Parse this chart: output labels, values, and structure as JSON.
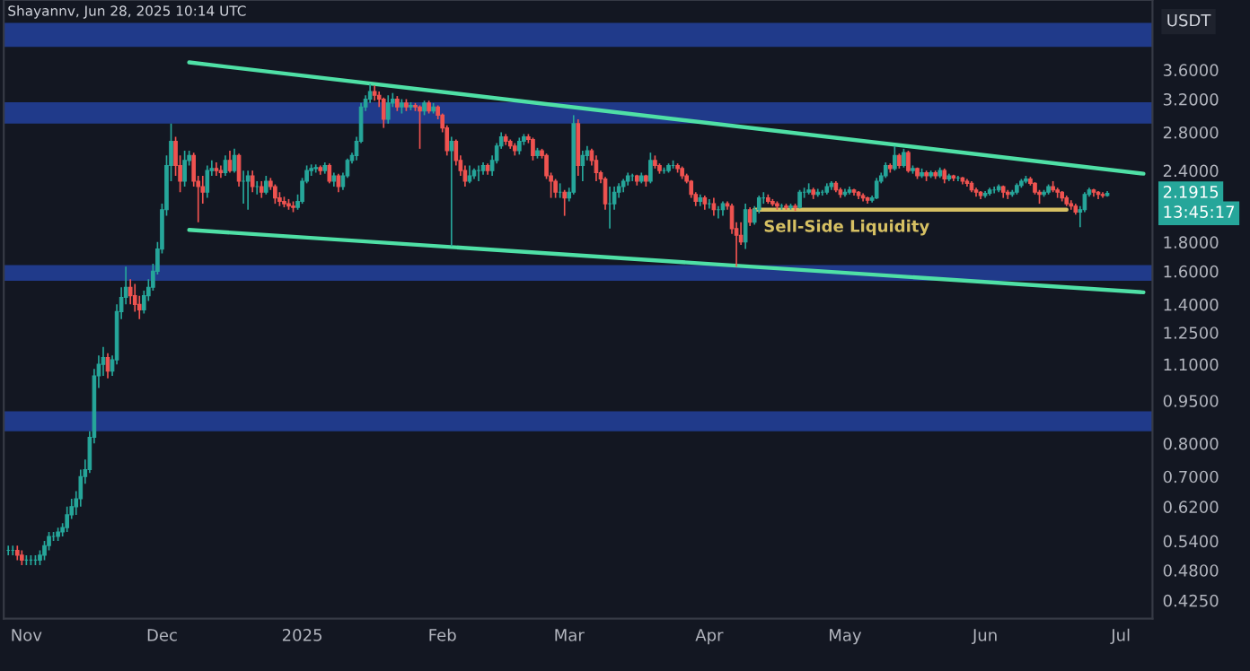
{
  "chart_data": {
    "type": "candlestick",
    "title": "Shayannv, Jun 28, 2025 10:14 UTC",
    "ylabel": "USDT",
    "x": [
      "2024-10-28",
      "2024-10-29",
      "2024-10-30",
      "2024-10-31",
      "2024-11-01",
      "2024-11-02",
      "2024-11-03",
      "2024-11-04",
      "2024-11-05",
      "2024-11-06",
      "2024-11-07",
      "2024-11-08",
      "2024-11-09",
      "2024-11-10",
      "2024-11-11",
      "2024-11-12",
      "2024-11-13",
      "2024-11-14",
      "2024-11-15",
      "2024-11-16",
      "2024-11-17",
      "2024-11-18",
      "2024-11-19",
      "2024-11-20",
      "2024-11-21",
      "2024-11-22",
      "2024-11-23",
      "2024-11-24",
      "2024-11-25",
      "2024-11-26",
      "2024-11-27",
      "2024-11-28",
      "2024-11-29",
      "2024-11-30",
      "2024-12-01",
      "2024-12-02",
      "2024-12-03",
      "2024-12-04",
      "2024-12-05",
      "2024-12-06",
      "2024-12-07",
      "2024-12-08",
      "2024-12-09",
      "2024-12-10",
      "2024-12-11",
      "2024-12-12",
      "2024-12-13",
      "2024-12-14",
      "2024-12-15",
      "2024-12-16",
      "2024-12-17",
      "2024-12-18",
      "2024-12-19",
      "2024-12-20",
      "2024-12-21",
      "2024-12-22",
      "2024-12-23",
      "2024-12-24",
      "2024-12-25",
      "2024-12-26",
      "2024-12-27",
      "2024-12-28",
      "2024-12-29",
      "2024-12-30",
      "2024-12-31",
      "2025-01-01",
      "2025-01-02",
      "2025-01-03",
      "2025-01-04",
      "2025-01-05",
      "2025-01-06",
      "2025-01-07",
      "2025-01-08",
      "2025-01-09",
      "2025-01-10",
      "2025-01-11",
      "2025-01-12",
      "2025-01-13",
      "2025-01-14",
      "2025-01-15",
      "2025-01-16",
      "2025-01-17",
      "2025-01-18",
      "2025-01-19",
      "2025-01-20",
      "2025-01-21",
      "2025-01-22",
      "2025-01-23",
      "2025-01-24",
      "2025-01-25",
      "2025-01-26",
      "2025-01-27",
      "2025-01-28",
      "2025-01-29",
      "2025-01-30",
      "2025-01-31",
      "2025-02-01",
      "2025-02-02",
      "2025-02-03",
      "2025-02-04",
      "2025-02-05",
      "2025-02-06",
      "2025-02-07",
      "2025-02-08",
      "2025-02-09",
      "2025-02-10",
      "2025-02-11",
      "2025-02-12",
      "2025-02-13",
      "2025-02-14",
      "2025-02-15",
      "2025-02-16",
      "2025-02-17",
      "2025-02-18",
      "2025-02-19",
      "2025-02-20",
      "2025-02-21",
      "2025-02-22",
      "2025-02-23",
      "2025-02-24",
      "2025-02-25",
      "2025-02-26",
      "2025-02-27",
      "2025-02-28",
      "2025-03-01",
      "2025-03-02",
      "2025-03-03",
      "2025-03-04",
      "2025-03-05",
      "2025-03-06",
      "2025-03-07",
      "2025-03-08",
      "2025-03-09",
      "2025-03-10",
      "2025-03-11",
      "2025-03-12",
      "2025-03-13",
      "2025-03-14",
      "2025-03-15",
      "2025-03-16",
      "2025-03-17",
      "2025-03-18",
      "2025-03-19",
      "2025-03-20",
      "2025-03-21",
      "2025-03-22",
      "2025-03-23",
      "2025-03-24",
      "2025-03-25",
      "2025-03-26",
      "2025-03-27",
      "2025-03-28",
      "2025-03-29",
      "2025-03-30",
      "2025-03-31",
      "2025-04-01",
      "2025-04-02",
      "2025-04-03",
      "2025-04-04",
      "2025-04-05",
      "2025-04-06",
      "2025-04-07",
      "2025-04-08",
      "2025-04-09",
      "2025-04-10",
      "2025-04-11",
      "2025-04-12",
      "2025-04-13",
      "2025-04-14",
      "2025-04-15",
      "2025-04-16",
      "2025-04-17",
      "2025-04-18",
      "2025-04-19",
      "2025-04-20",
      "2025-04-21",
      "2025-04-22",
      "2025-04-23",
      "2025-04-24",
      "2025-04-25",
      "2025-04-26",
      "2025-04-27",
      "2025-04-28",
      "2025-04-29",
      "2025-04-30",
      "2025-05-01",
      "2025-05-02",
      "2025-05-03",
      "2025-05-04",
      "2025-05-05",
      "2025-05-06",
      "2025-05-07",
      "2025-05-08",
      "2025-05-09",
      "2025-05-10",
      "2025-05-11",
      "2025-05-12",
      "2025-05-13",
      "2025-05-14",
      "2025-05-15",
      "2025-05-16",
      "2025-05-17",
      "2025-05-18",
      "2025-05-19",
      "2025-05-20",
      "2025-05-21",
      "2025-05-22",
      "2025-05-23",
      "2025-05-24",
      "2025-05-25",
      "2025-05-26",
      "2025-05-27",
      "2025-05-28",
      "2025-05-29",
      "2025-05-30",
      "2025-05-31",
      "2025-06-01",
      "2025-06-02",
      "2025-06-03",
      "2025-06-04",
      "2025-06-05",
      "2025-06-06",
      "2025-06-07",
      "2025-06-08",
      "2025-06-09",
      "2025-06-10",
      "2025-06-11",
      "2025-06-12",
      "2025-06-13",
      "2025-06-14",
      "2025-06-15",
      "2025-06-16",
      "2025-06-17",
      "2025-06-18",
      "2025-06-19",
      "2025-06-20",
      "2025-06-21",
      "2025-06-22",
      "2025-06-23",
      "2025-06-24",
      "2025-06-25",
      "2025-06-26",
      "2025-06-27",
      "2025-06-28"
    ],
    "ohlc": [
      [
        0.52,
        0.53,
        0.51,
        0.52
      ],
      [
        0.52,
        0.53,
        0.51,
        0.52
      ],
      [
        0.52,
        0.53,
        0.5,
        0.51
      ],
      [
        0.51,
        0.52,
        0.49,
        0.5
      ],
      [
        0.5,
        0.51,
        0.49,
        0.5
      ],
      [
        0.5,
        0.51,
        0.49,
        0.5
      ],
      [
        0.5,
        0.51,
        0.49,
        0.5
      ],
      [
        0.5,
        0.52,
        0.49,
        0.51
      ],
      [
        0.51,
        0.54,
        0.5,
        0.53
      ],
      [
        0.53,
        0.56,
        0.52,
        0.55
      ],
      [
        0.55,
        0.56,
        0.54,
        0.55
      ],
      [
        0.55,
        0.57,
        0.54,
        0.56
      ],
      [
        0.56,
        0.58,
        0.55,
        0.57
      ],
      [
        0.57,
        0.62,
        0.56,
        0.6
      ],
      [
        0.6,
        0.64,
        0.59,
        0.62
      ],
      [
        0.62,
        0.66,
        0.6,
        0.64
      ],
      [
        0.64,
        0.72,
        0.62,
        0.7
      ],
      [
        0.7,
        0.75,
        0.68,
        0.72
      ],
      [
        0.72,
        0.84,
        0.71,
        0.82
      ],
      [
        0.82,
        1.08,
        0.8,
        1.05
      ],
      [
        1.05,
        1.14,
        1.0,
        1.1
      ],
      [
        1.1,
        1.18,
        1.05,
        1.13
      ],
      [
        1.13,
        1.15,
        1.04,
        1.07
      ],
      [
        1.07,
        1.14,
        1.05,
        1.12
      ],
      [
        1.12,
        1.4,
        1.1,
        1.36
      ],
      [
        1.36,
        1.5,
        1.32,
        1.44
      ],
      [
        1.44,
        1.63,
        1.4,
        1.5
      ],
      [
        1.5,
        1.55,
        1.4,
        1.45
      ],
      [
        1.45,
        1.52,
        1.36,
        1.4
      ],
      [
        1.4,
        1.45,
        1.32,
        1.37
      ],
      [
        1.37,
        1.48,
        1.35,
        1.45
      ],
      [
        1.45,
        1.55,
        1.42,
        1.5
      ],
      [
        1.5,
        1.65,
        1.48,
        1.6
      ],
      [
        1.6,
        1.8,
        1.58,
        1.75
      ],
      [
        1.75,
        2.1,
        1.72,
        2.05
      ],
      [
        2.05,
        2.55,
        2.0,
        2.45
      ],
      [
        2.45,
        2.9,
        2.3,
        2.7
      ],
      [
        2.7,
        2.75,
        2.35,
        2.45
      ],
      [
        2.45,
        2.55,
        2.2,
        2.3
      ],
      [
        2.3,
        2.6,
        2.25,
        2.5
      ],
      [
        2.5,
        2.6,
        2.45,
        2.55
      ],
      [
        2.55,
        2.58,
        2.25,
        2.3
      ],
      [
        2.3,
        2.35,
        1.95,
        2.25
      ],
      [
        2.25,
        2.35,
        2.1,
        2.2
      ],
      [
        2.2,
        2.45,
        2.15,
        2.4
      ],
      [
        2.4,
        2.5,
        2.35,
        2.42
      ],
      [
        2.42,
        2.48,
        2.35,
        2.4
      ],
      [
        2.4,
        2.45,
        2.33,
        2.38
      ],
      [
        2.38,
        2.55,
        2.35,
        2.5
      ],
      [
        2.5,
        2.6,
        2.38,
        2.4
      ],
      [
        2.4,
        2.62,
        2.38,
        2.55
      ],
      [
        2.55,
        2.57,
        2.25,
        2.3
      ],
      [
        2.3,
        2.4,
        2.1,
        2.3
      ],
      [
        2.3,
        2.4,
        2.05,
        2.35
      ],
      [
        2.35,
        2.4,
        2.2,
        2.25
      ],
      [
        2.25,
        2.3,
        2.18,
        2.25
      ],
      [
        2.25,
        2.3,
        2.15,
        2.2
      ],
      [
        2.2,
        2.35,
        2.18,
        2.3
      ],
      [
        2.3,
        2.33,
        2.22,
        2.25
      ],
      [
        2.25,
        2.27,
        2.1,
        2.15
      ],
      [
        2.15,
        2.2,
        2.08,
        2.12
      ],
      [
        2.12,
        2.16,
        2.07,
        2.1
      ],
      [
        2.1,
        2.14,
        2.05,
        2.08
      ],
      [
        2.08,
        2.12,
        2.03,
        2.07
      ],
      [
        2.07,
        2.18,
        2.05,
        2.12
      ],
      [
        2.12,
        2.33,
        2.1,
        2.3
      ],
      [
        2.3,
        2.45,
        2.28,
        2.4
      ],
      [
        2.4,
        2.46,
        2.35,
        2.42
      ],
      [
        2.42,
        2.46,
        2.38,
        2.43
      ],
      [
        2.43,
        2.45,
        2.36,
        2.4
      ],
      [
        2.4,
        2.48,
        2.37,
        2.45
      ],
      [
        2.45,
        2.47,
        2.28,
        2.3
      ],
      [
        2.3,
        2.38,
        2.25,
        2.35
      ],
      [
        2.35,
        2.37,
        2.2,
        2.25
      ],
      [
        2.25,
        2.38,
        2.22,
        2.35
      ],
      [
        2.35,
        2.52,
        2.33,
        2.5
      ],
      [
        2.5,
        2.58,
        2.47,
        2.55
      ],
      [
        2.55,
        2.75,
        2.5,
        2.7
      ],
      [
        2.7,
        3.15,
        2.68,
        3.1
      ],
      [
        3.1,
        3.25,
        3.05,
        3.2
      ],
      [
        3.2,
        3.4,
        3.15,
        3.3
      ],
      [
        3.3,
        3.38,
        3.18,
        3.25
      ],
      [
        3.25,
        3.3,
        3.1,
        3.2
      ],
      [
        3.2,
        3.22,
        2.85,
        2.95
      ],
      [
        2.95,
        3.25,
        2.9,
        3.15
      ],
      [
        3.15,
        3.28,
        3.1,
        3.2
      ],
      [
        3.2,
        3.24,
        3.05,
        3.1
      ],
      [
        3.1,
        3.2,
        3.02,
        3.15
      ],
      [
        3.15,
        3.2,
        3.05,
        3.1
      ],
      [
        3.1,
        3.16,
        3.06,
        3.12
      ],
      [
        3.12,
        3.15,
        3.05,
        3.1
      ],
      [
        3.1,
        3.12,
        2.62,
        3.05
      ],
      [
        3.05,
        3.18,
        3.0,
        3.15
      ],
      [
        3.15,
        3.18,
        3.02,
        3.05
      ],
      [
        3.05,
        3.15,
        3.02,
        3.1
      ],
      [
        3.1,
        3.12,
        2.95,
        3.0
      ],
      [
        3.0,
        3.02,
        2.8,
        2.85
      ],
      [
        2.85,
        2.88,
        2.55,
        2.6
      ],
      [
        2.6,
        2.75,
        1.77,
        2.7
      ],
      [
        2.7,
        2.72,
        2.45,
        2.5
      ],
      [
        2.5,
        2.55,
        2.35,
        2.4
      ],
      [
        2.4,
        2.45,
        2.25,
        2.3
      ],
      [
        2.3,
        2.45,
        2.28,
        2.35
      ],
      [
        2.35,
        2.42,
        2.32,
        2.4
      ],
      [
        2.4,
        2.45,
        2.3,
        2.4
      ],
      [
        2.4,
        2.48,
        2.36,
        2.45
      ],
      [
        2.45,
        2.47,
        2.36,
        2.4
      ],
      [
        2.4,
        2.55,
        2.35,
        2.5
      ],
      [
        2.5,
        2.68,
        2.47,
        2.65
      ],
      [
        2.65,
        2.8,
        2.62,
        2.75
      ],
      [
        2.75,
        2.78,
        2.66,
        2.7
      ],
      [
        2.7,
        2.72,
        2.62,
        2.65
      ],
      [
        2.65,
        2.68,
        2.55,
        2.6
      ],
      [
        2.6,
        2.74,
        2.56,
        2.7
      ],
      [
        2.7,
        2.78,
        2.66,
        2.75
      ],
      [
        2.75,
        2.78,
        2.68,
        2.72
      ],
      [
        2.72,
        2.74,
        2.5,
        2.55
      ],
      [
        2.55,
        2.63,
        2.52,
        2.6
      ],
      [
        2.6,
        2.62,
        2.52,
        2.55
      ],
      [
        2.55,
        2.57,
        2.32,
        2.35
      ],
      [
        2.35,
        2.38,
        2.15,
        2.3
      ],
      [
        2.3,
        2.32,
        2.15,
        2.2
      ],
      [
        2.2,
        2.28,
        2.15,
        2.2
      ],
      [
        2.2,
        2.22,
        2.0,
        2.15
      ],
      [
        2.15,
        2.24,
        2.12,
        2.2
      ],
      [
        2.2,
        3.0,
        2.18,
        2.9
      ],
      [
        2.9,
        2.95,
        2.35,
        2.45
      ],
      [
        2.45,
        2.6,
        2.3,
        2.55
      ],
      [
        2.55,
        2.65,
        2.5,
        2.6
      ],
      [
        2.6,
        2.62,
        2.45,
        2.5
      ],
      [
        2.5,
        2.55,
        2.3,
        2.38
      ],
      [
        2.38,
        2.4,
        2.28,
        2.32
      ],
      [
        2.32,
        2.34,
        2.05,
        2.1
      ],
      [
        2.1,
        2.25,
        1.9,
        2.1
      ],
      [
        2.1,
        2.25,
        2.05,
        2.2
      ],
      [
        2.2,
        2.28,
        2.15,
        2.25
      ],
      [
        2.25,
        2.32,
        2.2,
        2.3
      ],
      [
        2.3,
        2.38,
        2.26,
        2.35
      ],
      [
        2.35,
        2.37,
        2.3,
        2.35
      ],
      [
        2.35,
        2.36,
        2.26,
        2.3
      ],
      [
        2.3,
        2.38,
        2.28,
        2.35
      ],
      [
        2.35,
        2.36,
        2.25,
        2.3
      ],
      [
        2.3,
        2.58,
        2.28,
        2.5
      ],
      [
        2.5,
        2.55,
        2.42,
        2.45
      ],
      [
        2.45,
        2.47,
        2.37,
        2.4
      ],
      [
        2.4,
        2.43,
        2.37,
        2.4
      ],
      [
        2.4,
        2.47,
        2.38,
        2.45
      ],
      [
        2.45,
        2.5,
        2.42,
        2.45
      ],
      [
        2.45,
        2.47,
        2.38,
        2.42
      ],
      [
        2.42,
        2.44,
        2.32,
        2.35
      ],
      [
        2.35,
        2.37,
        2.28,
        2.3
      ],
      [
        2.3,
        2.31,
        2.15,
        2.18
      ],
      [
        2.18,
        2.2,
        2.08,
        2.12
      ],
      [
        2.12,
        2.18,
        2.08,
        2.15
      ],
      [
        2.15,
        2.17,
        2.05,
        2.1
      ],
      [
        2.1,
        2.14,
        2.06,
        2.1
      ],
      [
        2.1,
        2.15,
        2.0,
        2.05
      ],
      [
        2.05,
        2.08,
        1.98,
        2.05
      ],
      [
        2.05,
        2.12,
        2.0,
        2.1
      ],
      [
        2.1,
        2.12,
        2.05,
        2.08
      ],
      [
        2.08,
        2.1,
        1.86,
        1.9
      ],
      [
        1.9,
        1.95,
        1.63,
        1.85
      ],
      [
        1.85,
        1.95,
        1.78,
        1.8
      ],
      [
        1.8,
        2.1,
        1.75,
        2.05
      ],
      [
        2.05,
        2.07,
        1.92,
        1.95
      ],
      [
        1.95,
        2.08,
        1.93,
        2.05
      ],
      [
        2.05,
        2.17,
        2.02,
        2.15
      ],
      [
        2.15,
        2.2,
        2.1,
        2.15
      ],
      [
        2.15,
        2.18,
        2.1,
        2.12
      ],
      [
        2.12,
        2.14,
        2.08,
        2.1
      ],
      [
        2.1,
        2.12,
        2.05,
        2.08
      ],
      [
        2.08,
        2.1,
        2.05,
        2.08
      ],
      [
        2.08,
        2.1,
        2.05,
        2.07
      ],
      [
        2.07,
        2.1,
        2.05,
        2.08
      ],
      [
        2.08,
        2.1,
        2.04,
        2.07
      ],
      [
        2.07,
        2.22,
        2.06,
        2.2
      ],
      [
        2.2,
        2.24,
        2.15,
        2.2
      ],
      [
        2.2,
        2.28,
        2.18,
        2.22
      ],
      [
        2.22,
        2.24,
        2.14,
        2.18
      ],
      [
        2.18,
        2.23,
        2.16,
        2.2
      ],
      [
        2.2,
        2.22,
        2.17,
        2.2
      ],
      [
        2.2,
        2.28,
        2.18,
        2.25
      ],
      [
        2.25,
        2.3,
        2.22,
        2.28
      ],
      [
        2.28,
        2.3,
        2.2,
        2.22
      ],
      [
        2.22,
        2.24,
        2.15,
        2.18
      ],
      [
        2.18,
        2.23,
        2.16,
        2.2
      ],
      [
        2.2,
        2.25,
        2.18,
        2.22
      ],
      [
        2.22,
        2.23,
        2.17,
        2.2
      ],
      [
        2.2,
        2.21,
        2.14,
        2.17
      ],
      [
        2.17,
        2.19,
        2.12,
        2.15
      ],
      [
        2.15,
        2.16,
        2.1,
        2.13
      ],
      [
        2.13,
        2.17,
        2.11,
        2.15
      ],
      [
        2.15,
        2.33,
        2.14,
        2.3
      ],
      [
        2.3,
        2.38,
        2.28,
        2.35
      ],
      [
        2.35,
        2.48,
        2.33,
        2.45
      ],
      [
        2.45,
        2.47,
        2.38,
        2.42
      ],
      [
        2.42,
        2.65,
        2.4,
        2.55
      ],
      [
        2.55,
        2.57,
        2.42,
        2.45
      ],
      [
        2.45,
        2.62,
        2.43,
        2.58
      ],
      [
        2.58,
        2.6,
        2.38,
        2.4
      ],
      [
        2.4,
        2.45,
        2.37,
        2.42
      ],
      [
        2.42,
        2.43,
        2.32,
        2.35
      ],
      [
        2.35,
        2.42,
        2.33,
        2.38
      ],
      [
        2.38,
        2.4,
        2.3,
        2.35
      ],
      [
        2.35,
        2.4,
        2.33,
        2.38
      ],
      [
        2.38,
        2.4,
        2.32,
        2.35
      ],
      [
        2.35,
        2.43,
        2.33,
        2.4
      ],
      [
        2.4,
        2.42,
        2.28,
        2.32
      ],
      [
        2.32,
        2.37,
        2.3,
        2.35
      ],
      [
        2.35,
        2.36,
        2.3,
        2.33
      ],
      [
        2.33,
        2.35,
        2.3,
        2.33
      ],
      [
        2.33,
        2.34,
        2.27,
        2.3
      ],
      [
        2.3,
        2.32,
        2.25,
        2.28
      ],
      [
        2.28,
        2.3,
        2.2,
        2.22
      ],
      [
        2.22,
        2.24,
        2.16,
        2.2
      ],
      [
        2.2,
        2.21,
        2.14,
        2.17
      ],
      [
        2.17,
        2.21,
        2.15,
        2.19
      ],
      [
        2.19,
        2.24,
        2.17,
        2.22
      ],
      [
        2.22,
        2.25,
        2.19,
        2.22
      ],
      [
        2.22,
        2.27,
        2.2,
        2.25
      ],
      [
        2.25,
        2.26,
        2.15,
        2.2
      ],
      [
        2.2,
        2.22,
        2.14,
        2.18
      ],
      [
        2.18,
        2.22,
        2.16,
        2.2
      ],
      [
        2.2,
        2.28,
        2.18,
        2.26
      ],
      [
        2.26,
        2.32,
        2.24,
        2.3
      ],
      [
        2.3,
        2.35,
        2.28,
        2.32
      ],
      [
        2.32,
        2.34,
        2.26,
        2.28
      ],
      [
        2.28,
        2.29,
        2.18,
        2.2
      ],
      [
        2.2,
        2.22,
        2.1,
        2.18
      ],
      [
        2.18,
        2.22,
        2.16,
        2.2
      ],
      [
        2.2,
        2.27,
        2.18,
        2.25
      ],
      [
        2.25,
        2.3,
        2.2,
        2.22
      ],
      [
        2.22,
        2.24,
        2.15,
        2.2
      ],
      [
        2.2,
        2.21,
        2.12,
        2.15
      ],
      [
        2.15,
        2.17,
        2.08,
        2.1
      ],
      [
        2.1,
        2.13,
        2.05,
        2.08
      ],
      [
        2.08,
        2.1,
        2.01,
        2.03
      ],
      [
        2.03,
        2.08,
        1.91,
        2.05
      ],
      [
        2.05,
        2.2,
        2.03,
        2.18
      ],
      [
        2.18,
        2.24,
        2.16,
        2.22
      ],
      [
        2.22,
        2.23,
        2.16,
        2.2
      ],
      [
        2.2,
        2.21,
        2.14,
        2.18
      ],
      [
        2.18,
        2.2,
        2.15,
        2.17
      ],
      [
        2.17,
        2.21,
        2.16,
        2.19
      ]
    ],
    "series": [
      {
        "type": "line",
        "color": "#4fe0a6",
        "x": [
          "2024-12-07",
          "2025-07-06"
        ],
        "values": [
          3.71,
          2.37
        ]
      },
      {
        "type": "line",
        "color": "#4fe0a6",
        "x": [
          "2024-12-07",
          "2025-07-06"
        ],
        "values": [
          1.89,
          1.47
        ]
      },
      {
        "type": "line",
        "color": "#d6c063",
        "x": [
          "2025-04-11",
          "2025-06-19"
        ],
        "values": [
          2.05,
          2.05
        ]
      }
    ],
    "bands": [
      {
        "axis": "y",
        "from": 3.95,
        "to": 4.35,
        "color": "#23419c"
      },
      {
        "axis": "y",
        "from": 2.9,
        "to": 3.16,
        "color": "#23419c"
      },
      {
        "axis": "y",
        "from": 1.54,
        "to": 1.64,
        "color": "#23419c"
      },
      {
        "axis": "y",
        "from": 0.84,
        "to": 0.91,
        "color": "#23419c"
      }
    ],
    "annotations": [
      {
        "text": "Sell-Side Liquidity",
        "x": "2025-04-13",
        "y": 1.97
      },
      "2.1915",
      "13:45:17"
    ],
    "log": "y",
    "xlim": [
      "2024-10-27",
      "2025-07-08"
    ],
    "xticks": [
      {
        "value": "2024-11-01",
        "label": "Nov"
      },
      {
        "value": "2024-12-01",
        "label": "Dec"
      },
      {
        "value": "2025-01-01",
        "label": "2025"
      },
      {
        "value": "2025-02-01",
        "label": "Feb"
      },
      {
        "value": "2025-03-01",
        "label": "Mar"
      },
      {
        "value": "2025-04-01",
        "label": "Apr"
      },
      {
        "value": "2025-05-01",
        "label": "May"
      },
      {
        "value": "2025-06-01",
        "label": "Jun"
      },
      {
        "value": "2025-07-01",
        "label": "Jul"
      }
    ],
    "ylim": [
      0.395,
      4.77
    ],
    "yticks": [
      {
        "value": 3.6,
        "label": "3.6000"
      },
      {
        "value": 3.2,
        "label": "3.2000"
      },
      {
        "value": 2.8,
        "label": "2.8000"
      },
      {
        "value": 2.4,
        "label": "2.4000"
      },
      {
        "value": 1.8,
        "label": "1.8000"
      },
      {
        "value": 1.6,
        "label": "1.6000"
      },
      {
        "value": 1.4,
        "label": "1.4000"
      },
      {
        "value": 1.25,
        "label": "1.2500"
      },
      {
        "value": 1.1,
        "label": "1.1000"
      },
      {
        "value": 0.95,
        "label": "0.9500"
      },
      {
        "value": 0.8,
        "label": "0.8000"
      },
      {
        "value": 0.7,
        "label": "0.7000"
      },
      {
        "value": 0.62,
        "label": "0.6200"
      },
      {
        "value": 0.54,
        "label": "0.5400"
      },
      {
        "value": 0.48,
        "label": "0.4800"
      },
      {
        "value": 0.425,
        "label": "0.4250"
      }
    ]
  }
}
